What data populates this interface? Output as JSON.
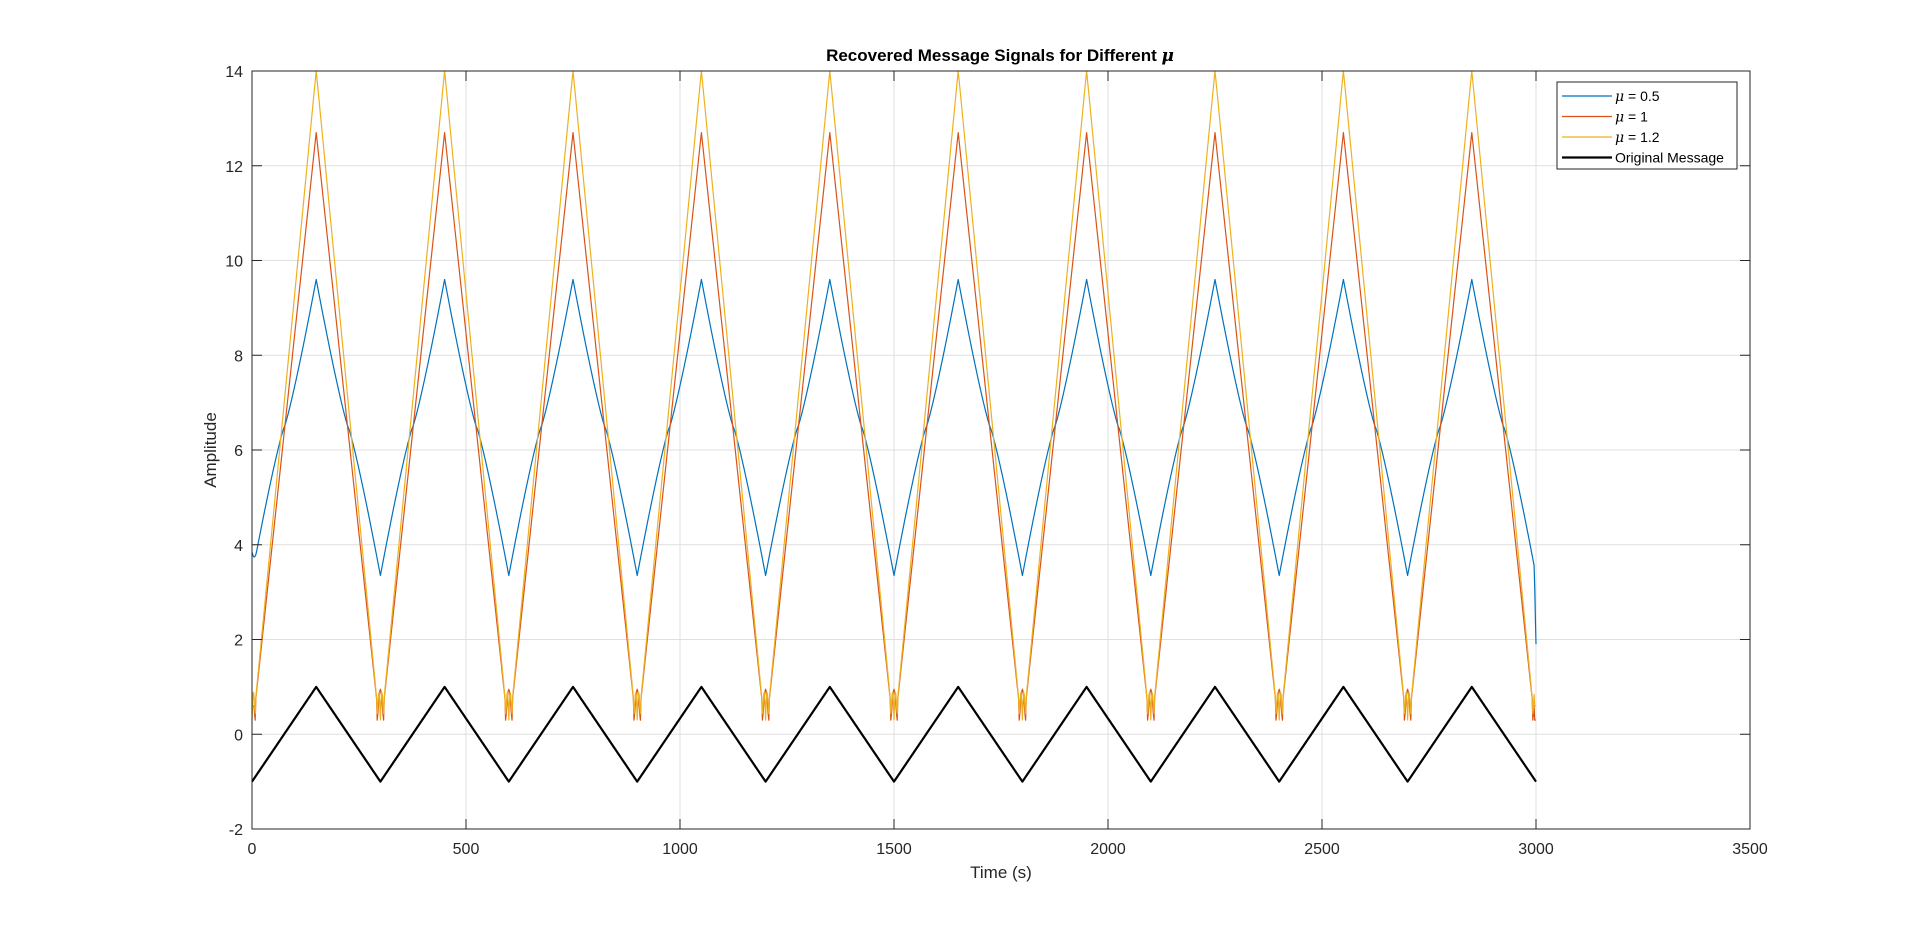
{
  "chart_data": {
    "type": "line",
    "title": {
      "text": "Recovered Message Signals for Different ",
      "symbol": "μ"
    },
    "xlabel": "Time (s)",
    "ylabel": "Amplitude",
    "xlim": [
      0,
      3500
    ],
    "ylim": [
      -2,
      14
    ],
    "xticks": [
      0,
      500,
      1000,
      1500,
      2000,
      2500,
      3000,
      3500
    ],
    "yticks": [
      -2,
      0,
      2,
      4,
      6,
      8,
      10,
      12,
      14
    ],
    "xtick_labels": [
      "0",
      "500",
      "1000",
      "1500",
      "2000",
      "2500",
      "3000",
      "3500"
    ],
    "ytick_labels": [
      "-2",
      "0",
      "2",
      "4",
      "6",
      "8",
      "10",
      "12",
      "14"
    ],
    "grid": true,
    "legend_position": "top-right",
    "signal_period": 300,
    "time_range": [
      0,
      3000
    ],
    "series": [
      {
        "symbol": "μ",
        "name": " = 0.5",
        "color": "#0072BD",
        "peak": 9.6,
        "trough": 3.35
      },
      {
        "symbol": "μ",
        "name": " = 1",
        "color": "#D95319",
        "peak": 12.7,
        "trough": 0.25
      },
      {
        "symbol": "μ",
        "name": " = 1.2",
        "color": "#EDB120",
        "peak": 14.0,
        "trough": 0.3
      },
      {
        "symbol": "",
        "name": "Original Message",
        "color": "#000000",
        "peak": 1,
        "trough": -1
      }
    ]
  }
}
